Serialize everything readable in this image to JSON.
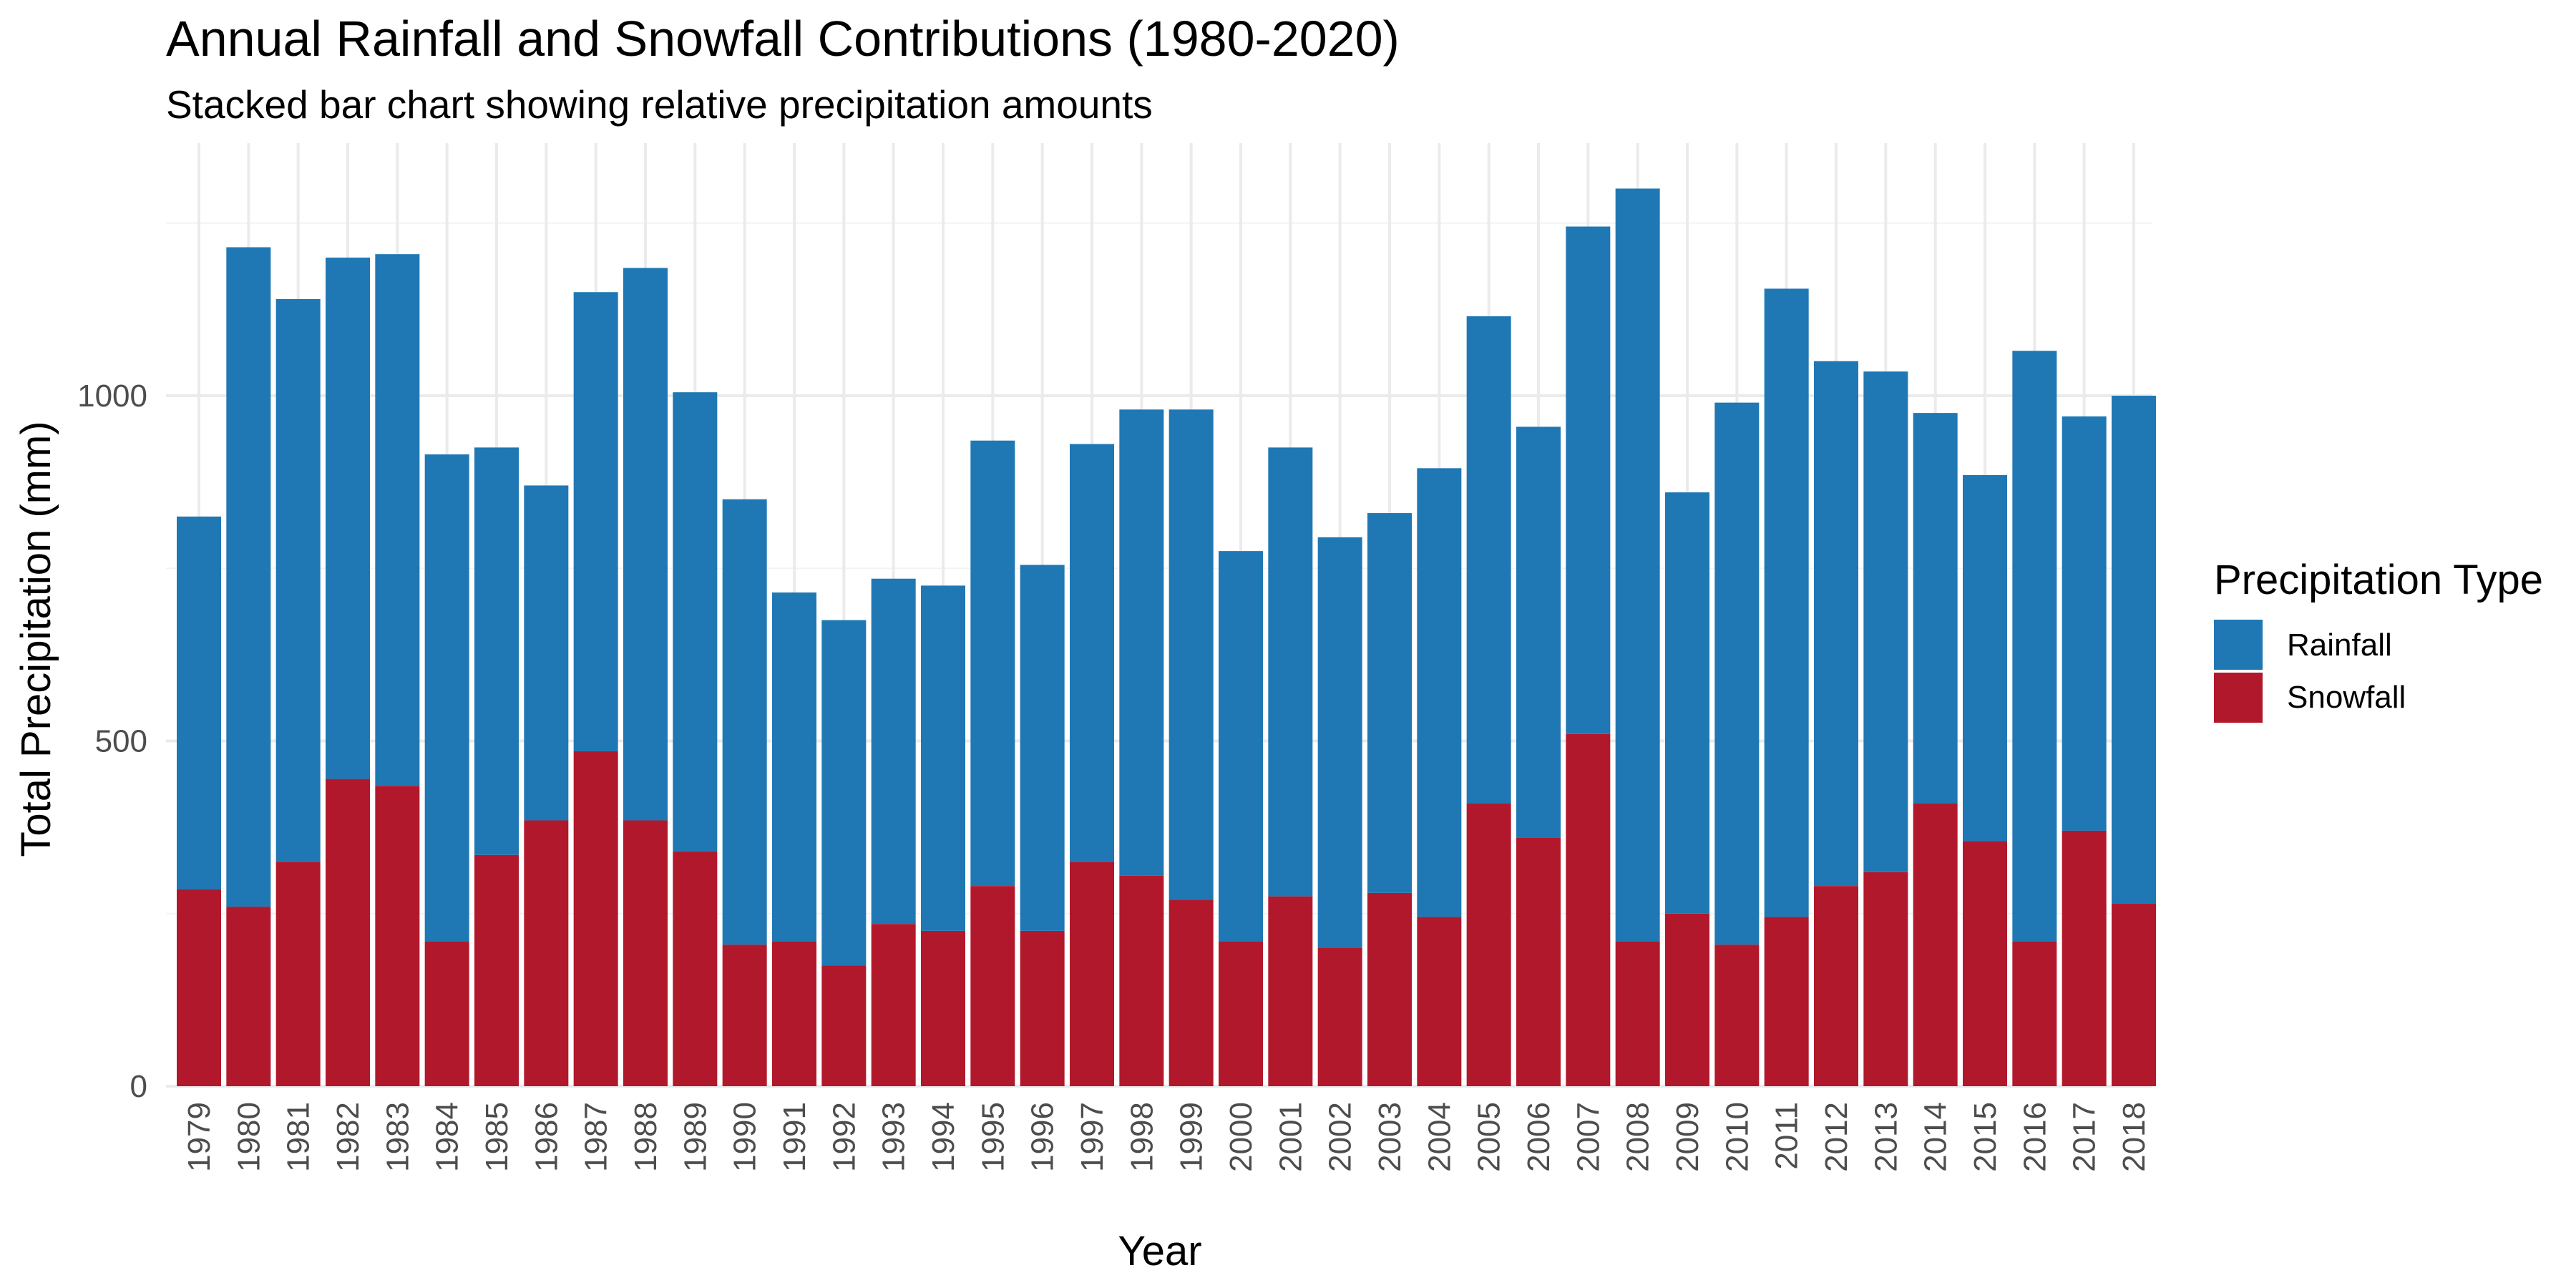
{
  "chart_data": {
    "type": "bar",
    "stacked": true,
    "title": "Annual Rainfall and Snowfall Contributions (1980-2020)",
    "subtitle": "Stacked bar chart showing relative precipitation amounts",
    "xlabel": "Year",
    "ylabel": "Total Precipitation (mm)",
    "ylim": [
      0,
      1300
    ],
    "yticks": [
      0,
      500,
      1000
    ],
    "grid": true,
    "legend": {
      "title": "Precipitation Type",
      "position": "right"
    },
    "categories": [
      "1979",
      "1980",
      "1981",
      "1982",
      "1983",
      "1984",
      "1985",
      "1986",
      "1987",
      "1988",
      "1989",
      "1990",
      "1991",
      "1992",
      "1993",
      "1994",
      "1995",
      "1996",
      "1997",
      "1998",
      "1999",
      "2000",
      "2001",
      "2002",
      "2003",
      "2004",
      "2005",
      "2006",
      "2007",
      "2008",
      "2009",
      "2010",
      "2011",
      "2012",
      "2013",
      "2014",
      "2015",
      "2016",
      "2017",
      "2018"
    ],
    "series": [
      {
        "name": "Rainfall",
        "color": "#1f78b4",
        "values": [
          540,
          955,
          815,
          755,
          770,
          705,
          590,
          485,
          665,
          800,
          665,
          645,
          505,
          500,
          500,
          500,
          645,
          530,
          605,
          675,
          710,
          565,
          650,
          595,
          550,
          650,
          705,
          595,
          735,
          1090,
          610,
          785,
          910,
          760,
          725,
          565,
          530,
          855,
          600,
          735
        ]
      },
      {
        "name": "Snowfall",
        "color": "#b2182b",
        "values": [
          285,
          260,
          325,
          445,
          435,
          210,
          335,
          385,
          485,
          385,
          340,
          205,
          210,
          175,
          235,
          225,
          290,
          225,
          325,
          305,
          270,
          210,
          275,
          200,
          280,
          245,
          410,
          360,
          510,
          210,
          250,
          205,
          245,
          290,
          310,
          410,
          355,
          210,
          370,
          265
        ]
      }
    ]
  }
}
